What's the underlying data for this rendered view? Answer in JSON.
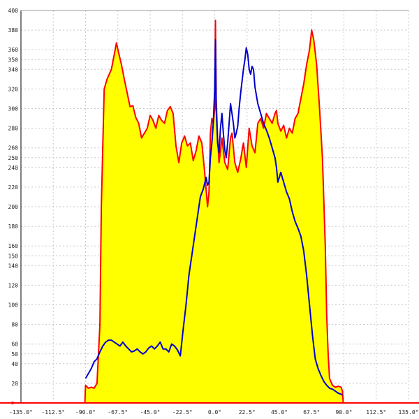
{
  "chart_data": {
    "type": "area",
    "title": "",
    "xlabel": "",
    "ylabel": "",
    "xlim": [
      -135,
      135
    ],
    "ylim": [
      0,
      400
    ],
    "grid": true,
    "x_tick_values": [
      -135,
      -112.5,
      -90,
      -67.5,
      -45,
      -22.5,
      0,
      22.5,
      45,
      67.5,
      90,
      112.5,
      135
    ],
    "x_tick_labels": [
      "-135.0°",
      "-112.5°",
      "-90.0°",
      "-67.5°",
      "-45.0°",
      "-22.5°",
      "0.0°",
      "22.5°",
      "45.0°",
      "67.5°",
      "90.0°",
      "112.5°",
      "135.0°"
    ],
    "y_ticks": [
      20,
      40,
      50,
      60,
      80,
      100,
      120,
      140,
      150,
      160,
      180,
      200,
      220,
      240,
      250,
      260,
      280,
      300,
      320,
      340,
      350,
      360,
      380,
      400
    ],
    "colors": {
      "fill": "#ffff00",
      "red_series": "#ff0000",
      "blue_series": "#0000cc",
      "grid": "#c8c8c8",
      "frame": "#000000"
    },
    "series": [
      {
        "color": "#ff0000",
        "filled": true,
        "points": [
          [
            -135,
            0
          ],
          [
            -90.5,
            0
          ],
          [
            -90,
            18
          ],
          [
            -88,
            15
          ],
          [
            -86,
            16
          ],
          [
            -84,
            15
          ],
          [
            -82,
            20
          ],
          [
            -80,
            80
          ],
          [
            -79,
            200
          ],
          [
            -77,
            320
          ],
          [
            -75,
            330
          ],
          [
            -72,
            340
          ],
          [
            -70,
            355
          ],
          [
            -68.5,
            367
          ],
          [
            -67,
            357
          ],
          [
            -65,
            345
          ],
          [
            -63,
            330
          ],
          [
            -61,
            316
          ],
          [
            -59,
            302
          ],
          [
            -57,
            303
          ],
          [
            -55,
            291
          ],
          [
            -53,
            285
          ],
          [
            -51,
            270
          ],
          [
            -49,
            275
          ],
          [
            -47,
            280
          ],
          [
            -45,
            293
          ],
          [
            -43,
            288
          ],
          [
            -41,
            280
          ],
          [
            -39,
            293
          ],
          [
            -37,
            288
          ],
          [
            -35,
            285
          ],
          [
            -33,
            298
          ],
          [
            -31,
            302
          ],
          [
            -29,
            295
          ],
          [
            -27,
            262
          ],
          [
            -25,
            245
          ],
          [
            -23,
            265
          ],
          [
            -21,
            272
          ],
          [
            -19,
            262
          ],
          [
            -17,
            265
          ],
          [
            -15,
            247
          ],
          [
            -13,
            257
          ],
          [
            -11,
            272
          ],
          [
            -9,
            265
          ],
          [
            -7,
            235
          ],
          [
            -5,
            200
          ],
          [
            -4,
            215
          ],
          [
            -3,
            275
          ],
          [
            -2,
            290
          ],
          [
            -1,
            285
          ],
          [
            0,
            300
          ],
          [
            0.5,
            390
          ],
          [
            1,
            310
          ],
          [
            2,
            270
          ],
          [
            3,
            245
          ],
          [
            5,
            270
          ],
          [
            7,
            245
          ],
          [
            9,
            238
          ],
          [
            11,
            270
          ],
          [
            12,
            275
          ],
          [
            14,
            245
          ],
          [
            16,
            235
          ],
          [
            18,
            248
          ],
          [
            20,
            265
          ],
          [
            22,
            240
          ],
          [
            24,
            280
          ],
          [
            26,
            262
          ],
          [
            28,
            255
          ],
          [
            30,
            285
          ],
          [
            32,
            290
          ],
          [
            34,
            280
          ],
          [
            36,
            295
          ],
          [
            38,
            290
          ],
          [
            40,
            285
          ],
          [
            42,
            295
          ],
          [
            43,
            298
          ],
          [
            44,
            285
          ],
          [
            46,
            277
          ],
          [
            48,
            283
          ],
          [
            50,
            270
          ],
          [
            52,
            280
          ],
          [
            54,
            275
          ],
          [
            56,
            290
          ],
          [
            58,
            295
          ],
          [
            60,
            310
          ],
          [
            62,
            325
          ],
          [
            64,
            345
          ],
          [
            66,
            360
          ],
          [
            67.5,
            380
          ],
          [
            69,
            370
          ],
          [
            71,
            345
          ],
          [
            73,
            300
          ],
          [
            75,
            250
          ],
          [
            77,
            160
          ],
          [
            78,
            90
          ],
          [
            79,
            50
          ],
          [
            80,
            25
          ],
          [
            82,
            18
          ],
          [
            84,
            16
          ],
          [
            86,
            17
          ],
          [
            88,
            16
          ],
          [
            89,
            12
          ],
          [
            89.5,
            0
          ],
          [
            135,
            0
          ]
        ]
      },
      {
        "color": "#0000cc",
        "filled": false,
        "points": [
          [
            -90,
            25
          ],
          [
            -88,
            30
          ],
          [
            -86,
            35
          ],
          [
            -84,
            42
          ],
          [
            -82,
            45
          ],
          [
            -80,
            52
          ],
          [
            -78,
            58
          ],
          [
            -76,
            62
          ],
          [
            -74,
            64
          ],
          [
            -72,
            64
          ],
          [
            -70,
            62
          ],
          [
            -68,
            60
          ],
          [
            -66,
            58
          ],
          [
            -64,
            62
          ],
          [
            -62,
            58
          ],
          [
            -60,
            55
          ],
          [
            -58,
            52
          ],
          [
            -56,
            53
          ],
          [
            -54,
            55
          ],
          [
            -52,
            52
          ],
          [
            -50,
            50
          ],
          [
            -48,
            52
          ],
          [
            -46,
            56
          ],
          [
            -44,
            58
          ],
          [
            -42,
            55
          ],
          [
            -40,
            58
          ],
          [
            -38,
            62
          ],
          [
            -36,
            55
          ],
          [
            -34,
            55
          ],
          [
            -32,
            52
          ],
          [
            -30,
            60
          ],
          [
            -28,
            58
          ],
          [
            -26,
            54
          ],
          [
            -24,
            48
          ],
          [
            -22,
            75
          ],
          [
            -20,
            100
          ],
          [
            -18,
            130
          ],
          [
            -16,
            150
          ],
          [
            -14,
            170
          ],
          [
            -12,
            190
          ],
          [
            -10,
            210
          ],
          [
            -8,
            218
          ],
          [
            -6,
            230
          ],
          [
            -5,
            222
          ],
          [
            -4,
            225
          ],
          [
            -3,
            250
          ],
          [
            -2,
            265
          ],
          [
            -1,
            285
          ],
          [
            0,
            320
          ],
          [
            0.5,
            370
          ],
          [
            1,
            300
          ],
          [
            2,
            265
          ],
          [
            3,
            255
          ],
          [
            4,
            280
          ],
          [
            5,
            295
          ],
          [
            6,
            275
          ],
          [
            7,
            258
          ],
          [
            8,
            250
          ],
          [
            9,
            265
          ],
          [
            10,
            285
          ],
          [
            11,
            305
          ],
          [
            12,
            295
          ],
          [
            13,
            285
          ],
          [
            14,
            270
          ],
          [
            15,
            275
          ],
          [
            16,
            282
          ],
          [
            17,
            300
          ],
          [
            18,
            315
          ],
          [
            19,
            328
          ],
          [
            20,
            340
          ],
          [
            21,
            350
          ],
          [
            22,
            362
          ],
          [
            23,
            355
          ],
          [
            24,
            340
          ],
          [
            25,
            335
          ],
          [
            26,
            343
          ],
          [
            27,
            340
          ],
          [
            28,
            322
          ],
          [
            30,
            305
          ],
          [
            32,
            295
          ],
          [
            34,
            285
          ],
          [
            36,
            278
          ],
          [
            38,
            270
          ],
          [
            40,
            260
          ],
          [
            42,
            250
          ],
          [
            43,
            240
          ],
          [
            44,
            225
          ],
          [
            45,
            230
          ],
          [
            46,
            235
          ],
          [
            48,
            225
          ],
          [
            50,
            215
          ],
          [
            52,
            208
          ],
          [
            54,
            195
          ],
          [
            56,
            185
          ],
          [
            58,
            178
          ],
          [
            60,
            170
          ],
          [
            62,
            155
          ],
          [
            64,
            130
          ],
          [
            66,
            100
          ],
          [
            68,
            70
          ],
          [
            70,
            45
          ],
          [
            72,
            35
          ],
          [
            74,
            28
          ],
          [
            76,
            22
          ],
          [
            78,
            18
          ],
          [
            80,
            15
          ],
          [
            82,
            14
          ],
          [
            84,
            12
          ],
          [
            86,
            10
          ],
          [
            88,
            9
          ],
          [
            89,
            8
          ]
        ]
      }
    ]
  }
}
